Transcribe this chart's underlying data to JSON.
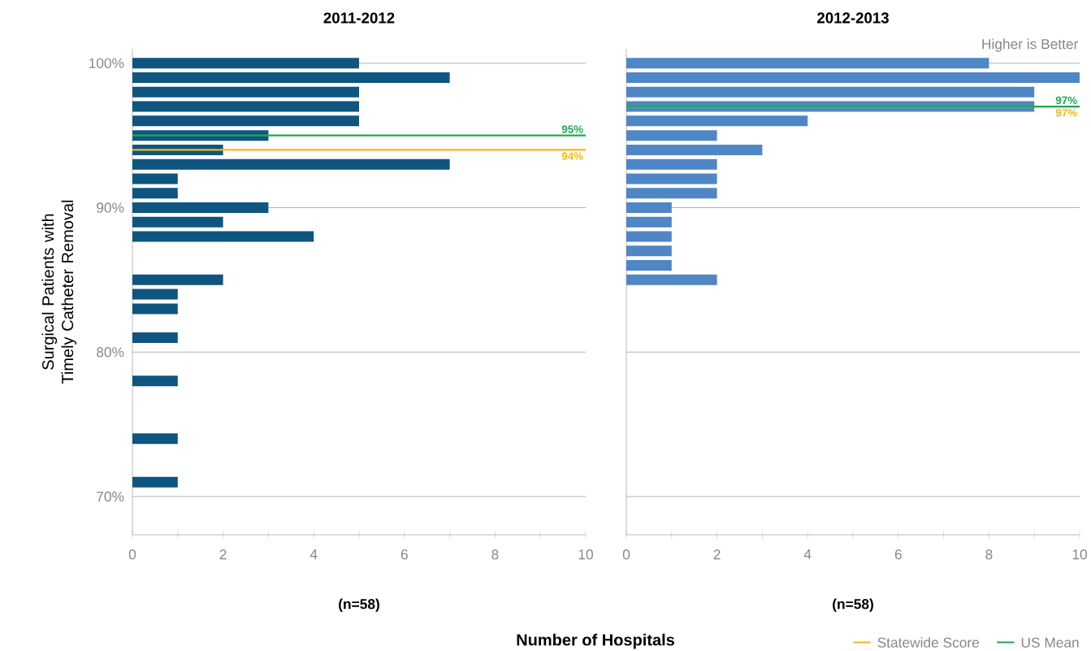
{
  "chart_data": [
    {
      "type": "bar",
      "orientation": "horizontal",
      "title": "2011-2012",
      "ylabel": "Surgical Patients with Timely Catheter Removal",
      "xlabel": "Number of Hospitals",
      "x": [
        100,
        99,
        98,
        97,
        96,
        95,
        94,
        93,
        92,
        91,
        90,
        89,
        88,
        85,
        84,
        83,
        81,
        78,
        74,
        71
      ],
      "values": [
        5,
        7,
        5,
        5,
        5,
        3,
        2,
        7,
        1,
        1,
        3,
        2,
        4,
        2,
        1,
        1,
        1,
        1,
        1,
        1
      ],
      "color": "#0e5580",
      "xlim": [
        0,
        10
      ],
      "xticks": [
        0,
        {
          "value": 1,
          "label": null
        },
        2,
        {
          "value": 3,
          "label": null
        },
        4,
        {
          "value": 5,
          "label": null
        },
        6,
        {
          "value": 7,
          "label": null
        },
        8,
        {
          "value": 9,
          "label": null
        },
        10
      ],
      "ylim": [
        67.35,
        101
      ],
      "yticks": [
        {
          "value": 70,
          "label": "70%"
        },
        {
          "value": 80,
          "label": "80%"
        },
        {
          "value": 90,
          "label": "90%"
        },
        {
          "value": 100,
          "label": "100%"
        }
      ],
      "grid": "y",
      "ref_lines": [
        {
          "axis": "y",
          "value": 94,
          "color": "#f6b815"
        },
        {
          "axis": "y",
          "value": 95,
          "color": "#1eaa50"
        }
      ],
      "annotations": [
        {
          "text": "94%",
          "y": 94
        },
        {
          "text": "95%",
          "y": 95
        },
        "(n=58)"
      ]
    },
    {
      "type": "bar",
      "orientation": "horizontal",
      "title": "2012-2013",
      "x": [
        100,
        99,
        98,
        97,
        96,
        95,
        94,
        93,
        92,
        91,
        90,
        89,
        88,
        87,
        86,
        85
      ],
      "values": [
        8,
        10,
        9,
        9,
        4,
        2,
        3,
        2,
        2,
        2,
        1,
        1,
        1,
        1,
        1,
        2
      ],
      "color": "#4f86c6",
      "xlim": [
        0,
        10
      ],
      "xticks": [
        0,
        {
          "value": 1,
          "label": null
        },
        2,
        {
          "value": 3,
          "label": null
        },
        4,
        {
          "value": 5,
          "label": null
        },
        6,
        {
          "value": 7,
          "label": null
        },
        8,
        {
          "value": 9,
          "label": null
        },
        10
      ],
      "ylim": [
        67.35,
        101
      ],
      "yticks": [
        70,
        80,
        90,
        100
      ],
      "tick_labels": "x",
      "grid": "y",
      "legend": "bottom right",
      "ref_lines": [
        {
          "axis": "y",
          "value": 97,
          "label": "Statewide Score",
          "color": "#f6b815"
        },
        {
          "axis": "y",
          "value": 97,
          "label": "US Mean",
          "color": "#1eaa50"
        }
      ],
      "annotations": [
        {
          "text": "97%",
          "y": 97
        },
        {
          "text": "97%",
          "y": 97
        },
        "(n=58)",
        "Higher is Better"
      ]
    }
  ]
}
